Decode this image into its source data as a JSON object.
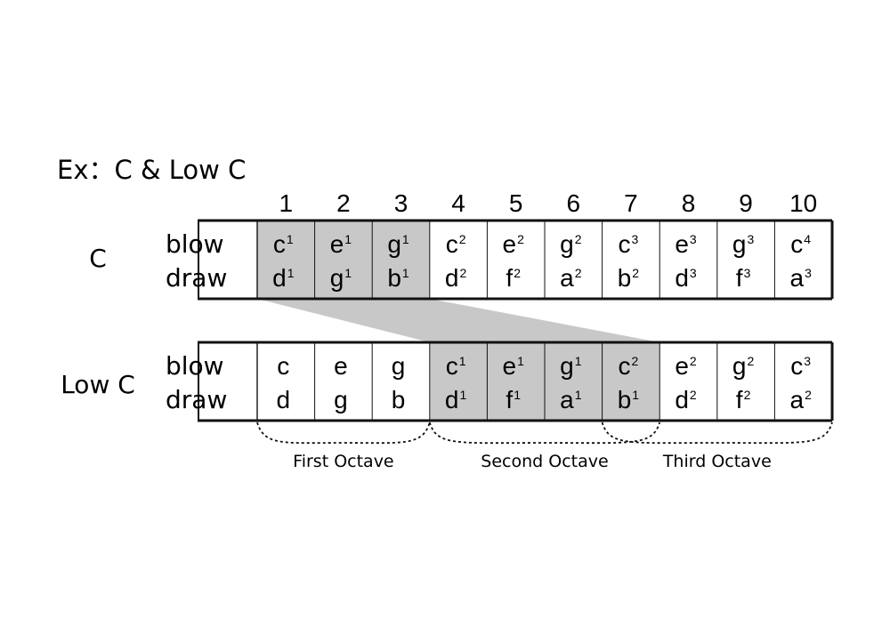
{
  "title": "Ex：C & Low C",
  "hole_numbers": [
    "1",
    "2",
    "3",
    "4",
    "5",
    "6",
    "7",
    "8",
    "9",
    "10"
  ],
  "harmonicas": [
    {
      "name": "C",
      "blow_label": "blow",
      "draw_label": "draw",
      "highlighted_holes": [
        1,
        2,
        3
      ],
      "holes": [
        {
          "blow": "c",
          "blow_sup": "1",
          "draw": "d",
          "draw_sup": "1"
        },
        {
          "blow": "e",
          "blow_sup": "1",
          "draw": "g",
          "draw_sup": "1"
        },
        {
          "blow": "g",
          "blow_sup": "1",
          "draw": "b",
          "draw_sup": "1"
        },
        {
          "blow": "c",
          "blow_sup": "2",
          "draw": "d",
          "draw_sup": "2"
        },
        {
          "blow": "e",
          "blow_sup": "2",
          "draw": "f",
          "draw_sup": "2"
        },
        {
          "blow": "g",
          "blow_sup": "2",
          "draw": "a",
          "draw_sup": "2"
        },
        {
          "blow": "c",
          "blow_sup": "3",
          "draw": "b",
          "draw_sup": "2"
        },
        {
          "blow": "e",
          "blow_sup": "3",
          "draw": "d",
          "draw_sup": "3"
        },
        {
          "blow": "g",
          "blow_sup": "3",
          "draw": "f",
          "draw_sup": "3"
        },
        {
          "blow": "c",
          "blow_sup": "4",
          "draw": "a",
          "draw_sup": "3"
        }
      ]
    },
    {
      "name": "Low C",
      "blow_label": "blow",
      "draw_label": "draw",
      "highlighted_holes": [
        4,
        5,
        6,
        7
      ],
      "holes": [
        {
          "blow": "c",
          "blow_sup": "",
          "draw": "d",
          "draw_sup": ""
        },
        {
          "blow": "e",
          "blow_sup": "",
          "draw": "g",
          "draw_sup": ""
        },
        {
          "blow": "g",
          "blow_sup": "",
          "draw": "b",
          "draw_sup": ""
        },
        {
          "blow": "c",
          "blow_sup": "1",
          "draw": "d",
          "draw_sup": "1"
        },
        {
          "blow": "e",
          "blow_sup": "1",
          "draw": "f",
          "draw_sup": "1"
        },
        {
          "blow": "g",
          "blow_sup": "1",
          "draw": "a",
          "draw_sup": "1"
        },
        {
          "blow": "c",
          "blow_sup": "2",
          "draw": "b",
          "draw_sup": "1"
        },
        {
          "blow": "e",
          "blow_sup": "2",
          "draw": "d",
          "draw_sup": "2"
        },
        {
          "blow": "g",
          "blow_sup": "2",
          "draw": "f",
          "draw_sup": "2"
        },
        {
          "blow": "c",
          "blow_sup": "3",
          "draw": "a",
          "draw_sup": "2"
        }
      ]
    }
  ],
  "octaves": [
    {
      "label": "First Octave",
      "from_hole": 1,
      "to_hole": 3
    },
    {
      "label": "Second Octave",
      "from_hole": 4,
      "to_hole": 7
    },
    {
      "label": "Third Octave",
      "from_hole": 7,
      "to_hole": 10
    }
  ],
  "colors": {
    "highlight": "#c8c8c8",
    "line": "#111111",
    "background": "#ffffff"
  }
}
